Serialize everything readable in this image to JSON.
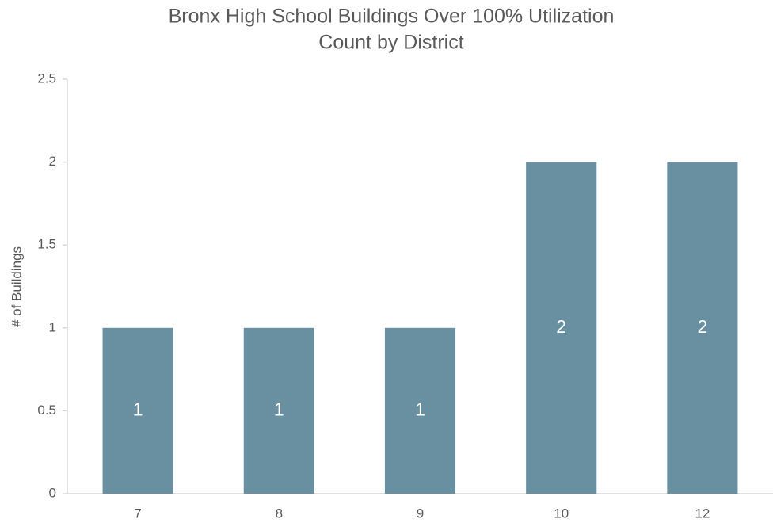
{
  "chart_data": {
    "type": "bar",
    "title": "Bronx High School Buildings Over 100% Utilization",
    "subtitle": "Count by District",
    "y_label": "# of Buildings",
    "categories": [
      "7",
      "8",
      "9",
      "10",
      "12"
    ],
    "values": [
      1,
      1,
      1,
      2,
      2
    ],
    "color": "#6890a0",
    "ylim": [
      0,
      2.5
    ],
    "yticks": [
      0,
      0.5,
      1,
      1.5,
      2,
      2.5
    ],
    "grid": false,
    "data_labels": true
  }
}
